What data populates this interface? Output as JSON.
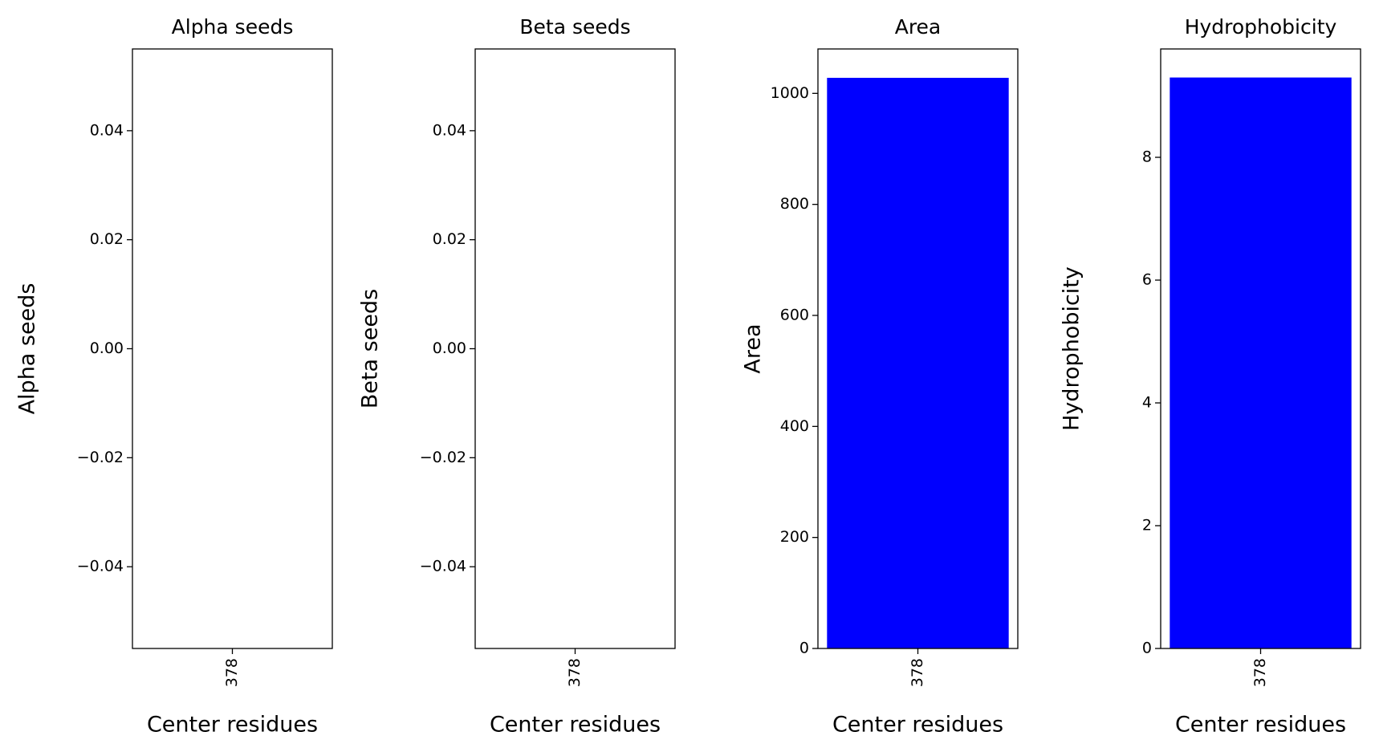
{
  "chart_data": [
    {
      "type": "bar",
      "title": "Alpha seeds",
      "ylabel": "Alpha seeds",
      "xlabel": "Center residues",
      "categories": [
        "378"
      ],
      "values": [
        0
      ],
      "color": "#0000ff",
      "ylim": [
        -0.055,
        0.055
      ],
      "yticks": [
        {
          "value": -0.04,
          "label": "−0.04"
        },
        {
          "value": -0.02,
          "label": "−0.02"
        },
        {
          "value": 0,
          "label": "0.00"
        },
        0.02,
        0.04
      ]
    },
    {
      "type": "bar",
      "title": "Beta seeds",
      "ylabel": "Beta seeds",
      "xlabel": "Center residues",
      "categories": [
        "378"
      ],
      "values": [
        0
      ],
      "color": "#0000ff",
      "ylim": [
        -0.055,
        0.055
      ],
      "yticks": [
        {
          "value": -0.04,
          "label": "−0.04"
        },
        {
          "value": -0.02,
          "label": "−0.02"
        },
        {
          "value": 0,
          "label": "0.00"
        },
        0.02,
        0.04
      ]
    },
    {
      "type": "bar",
      "title": "Area",
      "ylabel": "Area",
      "xlabel": "Center residues",
      "categories": [
        "378"
      ],
      "values": [
        1028
      ],
      "color": "#0000ff",
      "ylim": [
        0,
        1080
      ],
      "yticks": [
        0,
        200,
        400,
        600,
        800,
        1000
      ]
    },
    {
      "type": "bar",
      "title": "Hydrophobicity",
      "ylabel": "Hydrophobicity",
      "xlabel": "Center residues",
      "categories": [
        "378"
      ],
      "values": [
        9.3
      ],
      "color": "#0000ff",
      "ylim": [
        0,
        9.765
      ],
      "yticks": [
        0,
        2,
        4,
        6,
        8
      ]
    }
  ]
}
